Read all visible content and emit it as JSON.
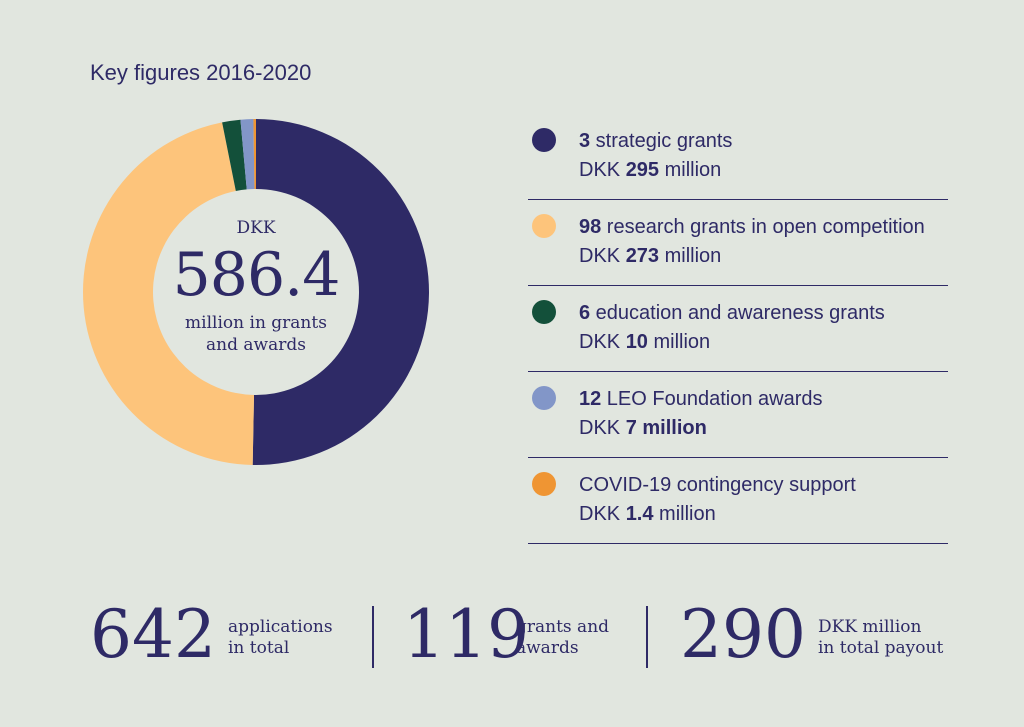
{
  "header": {
    "title": "Key figures 2016-2020"
  },
  "center": {
    "currency": "DKK",
    "total": "586.4",
    "line1": "million in grants",
    "line2": "and awards"
  },
  "colors": {
    "strategic": "#2e2a66",
    "research": "#fdc47b",
    "education": "#13503a",
    "leo": "#8296c8",
    "covid": "#ef9533"
  },
  "legend": [
    {
      "count": "3",
      "label": " strategic grants",
      "amount_prefix": "DKK ",
      "amount": "295",
      "amount_suffix": " million",
      "color": "#2e2a66"
    },
    {
      "count": "98",
      "label": " research grants in open competition",
      "amount_prefix": "DKK ",
      "amount": "273",
      "amount_suffix": " million",
      "color": "#fdc47b"
    },
    {
      "count": "6",
      "label": " education and awareness grants",
      "amount_prefix": "DKK ",
      "amount": "10",
      "amount_suffix": " million",
      "color": "#13503a"
    },
    {
      "count": "12",
      "label": " LEO Foundation awards",
      "amount_prefix": "DKK ",
      "amount": "7 million",
      "amount_suffix": "",
      "color": "#8296c8"
    },
    {
      "count": "",
      "label": "COVID-19 contingency support",
      "amount_prefix": "DKK ",
      "amount": "1.4",
      "amount_suffix": " million",
      "color": "#ef9533"
    }
  ],
  "stats": [
    {
      "value": "642",
      "line1": "applications",
      "line2": "in total"
    },
    {
      "value": "119",
      "line1": "grants and",
      "line2": "awards"
    },
    {
      "value": "290",
      "line1": "DKK million",
      "line2": "in total payout"
    }
  ],
  "chart_data": {
    "type": "pie",
    "title": "Key figures 2016-2020",
    "categories": [
      "strategic grants",
      "research grants in open competition",
      "education and awareness grants",
      "LEO Foundation awards",
      "COVID-19 contingency support"
    ],
    "values": [
      295,
      273,
      10,
      7,
      1.4
    ],
    "units": "DKK million",
    "total": 586.4,
    "legend_position": "right"
  }
}
